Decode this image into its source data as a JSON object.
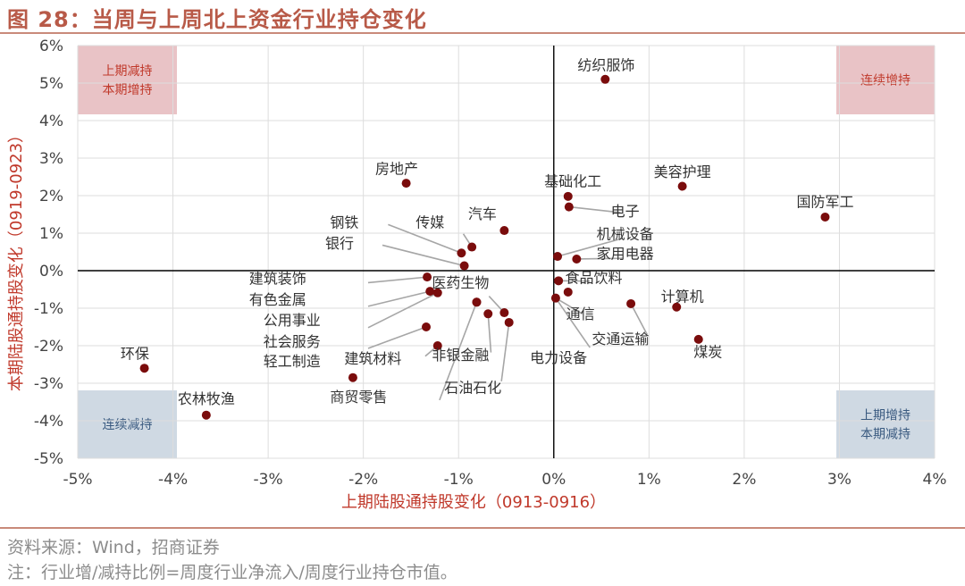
{
  "figure": {
    "title": "图 28：当周与上周北上资金行业持仓变化",
    "source": "资料来源：Wind，招商证券",
    "note": "注：行业增/减持比例=周度行业净流入/周度行业持仓市值。"
  },
  "chart_data": {
    "type": "scatter",
    "xlabel": "上期陆股通持股变化（0913-0916）",
    "ylabel": "本期陆股通持股变化（0919-0923）",
    "xlim": [
      -5,
      4
    ],
    "ylim": [
      -5,
      6
    ],
    "x_ticks": [
      -5,
      -4,
      -3,
      -2,
      -1,
      0,
      1,
      2,
      3,
      4
    ],
    "y_ticks": [
      -5,
      -4,
      -3,
      -2,
      -1,
      0,
      1,
      2,
      3,
      4,
      5,
      6
    ],
    "x_tick_labels": [
      "-5%",
      "-4%",
      "-3%",
      "-2%",
      "-1%",
      "0%",
      "1%",
      "2%",
      "3%",
      "4%"
    ],
    "y_tick_labels": [
      "-5%",
      "-4%",
      "-3%",
      "-2%",
      "-1%",
      "0%",
      "1%",
      "2%",
      "3%",
      "4%",
      "5%",
      "6%"
    ],
    "grid": true,
    "point_color": "#7a0c0c",
    "quadrants": [
      {
        "id": "top-left",
        "lines": [
          "上期减持",
          "本期增持"
        ],
        "color": "#e9c3c6",
        "text_color": "#c0392b"
      },
      {
        "id": "top-right",
        "lines": [
          "连续增持"
        ],
        "color": "#e9c3c6",
        "text_color": "#c0392b"
      },
      {
        "id": "bottom-left",
        "lines": [
          "连续减持"
        ],
        "color": "#cfd9e3",
        "text_color": "#3a5a80"
      },
      {
        "id": "bottom-right",
        "lines": [
          "上期增持",
          "本期减持"
        ],
        "color": "#cfd9e3",
        "text_color": "#3a5a80"
      }
    ],
    "points": [
      {
        "name": "纺织服饰",
        "x": 0.54,
        "y": 5.1
      },
      {
        "name": "美容护理",
        "x": 1.35,
        "y": 2.25
      },
      {
        "name": "国防军工",
        "x": 2.85,
        "y": 1.43
      },
      {
        "name": "基础化工",
        "x": 0.15,
        "y": 1.98
      },
      {
        "name": "电子",
        "x": 0.16,
        "y": 1.7
      },
      {
        "name": "机械设备",
        "x": 0.04,
        "y": 0.38
      },
      {
        "name": "家用电器",
        "x": 0.24,
        "y": 0.31
      },
      {
        "name": "食品饮料",
        "x": 0.05,
        "y": -0.27
      },
      {
        "name": "通信",
        "x": 0.15,
        "y": -0.57
      },
      {
        "name": "电力设备",
        "x": 0.02,
        "y": -0.73
      },
      {
        "name": "计算机",
        "x": 1.29,
        "y": -0.97
      },
      {
        "name": "交通运输",
        "x": 0.81,
        "y": -0.88
      },
      {
        "name": "煤炭",
        "x": 1.52,
        "y": -1.83
      },
      {
        "name": "房地产",
        "x": -1.55,
        "y": 2.33
      },
      {
        "name": "汽车",
        "x": -0.52,
        "y": 1.07
      },
      {
        "name": "传媒",
        "x": -0.86,
        "y": 0.63
      },
      {
        "name": "钢铁",
        "x": -0.97,
        "y": 0.47
      },
      {
        "name": "银行",
        "x": -0.94,
        "y": 0.13
      },
      {
        "name": "建筑装饰",
        "x": -1.33,
        "y": -0.17
      },
      {
        "name": "有色金属",
        "x": -1.3,
        "y": -0.55
      },
      {
        "name": "公用事业",
        "x": -1.22,
        "y": -0.59
      },
      {
        "name": "医药生物",
        "x": -0.81,
        "y": -0.84
      },
      {
        "name": "非银金融",
        "x": -0.69,
        "y": -1.15
      },
      {
        "name": "石油石化",
        "x": -0.52,
        "y": -1.12
      },
      {
        "name": "石油石化-2",
        "x": -0.47,
        "y": -1.38,
        "label": ""
      },
      {
        "name": "社会服务",
        "x": -1.34,
        "y": -1.5
      },
      {
        "name": "建筑材料",
        "x": -1.22,
        "y": -2.0
      },
      {
        "name": "轻工制造",
        "x": -2.11,
        "y": -2.85
      },
      {
        "name": "商贸零售",
        "x": -0.81,
        "y": -0.84,
        "label": ""
      },
      {
        "name": "环保",
        "x": -4.3,
        "y": -2.6
      },
      {
        "name": "农林牧渔",
        "x": -3.65,
        "y": -3.85
      }
    ],
    "labels": [
      {
        "text": "纺织服饰",
        "x": 0.55,
        "y": 5.35
      },
      {
        "text": "美容护理",
        "x": 1.35,
        "y": 2.5
      },
      {
        "text": "国防军工",
        "x": 2.85,
        "y": 1.7
      },
      {
        "text": "基础化工",
        "x": 0.2,
        "y": 2.25
      },
      {
        "text": "电子",
        "x": 0.75,
        "y": 1.45
      },
      {
        "text": "机械设备",
        "x": 0.75,
        "y": 0.85
      },
      {
        "text": "家用电器",
        "x": 0.75,
        "y": 0.32
      },
      {
        "text": "食品饮料",
        "x": 0.42,
        "y": -0.32
      },
      {
        "text": "通信",
        "x": 0.28,
        "y": -1.28
      },
      {
        "text": "电力设备",
        "x": 0.05,
        "y": -2.45
      },
      {
        "text": "计算机",
        "x": 1.35,
        "y": -0.82
      },
      {
        "text": "交通运输",
        "x": 0.7,
        "y": -1.95
      },
      {
        "text": "煤炭",
        "x": 1.62,
        "y": -2.3
      },
      {
        "text": "房地产",
        "x": -1.65,
        "y": 2.58
      },
      {
        "text": "汽车",
        "x": -0.75,
        "y": 1.38
      },
      {
        "text": "传媒",
        "x": -1.3,
        "y": 1.15
      },
      {
        "text": "钢铁",
        "x": -2.2,
        "y": 1.15
      },
      {
        "text": "银行",
        "x": -2.25,
        "y": 0.6
      },
      {
        "text": "建筑装饰",
        "x": -2.9,
        "y": -0.35
      },
      {
        "text": "有色金属",
        "x": -2.9,
        "y": -0.9
      },
      {
        "text": "医药生物",
        "x": -0.98,
        "y": -0.45
      },
      {
        "text": "公用事业",
        "x": -2.75,
        "y": -1.45
      },
      {
        "text": "社会服务",
        "x": -2.75,
        "y": -2.02
      },
      {
        "text": "轻工制造",
        "x": -2.75,
        "y": -2.55
      },
      {
        "text": "建筑材料",
        "x": -1.9,
        "y": -2.48
      },
      {
        "text": "非银金融",
        "x": -0.98,
        "y": -2.38
      },
      {
        "text": "石油石化",
        "x": -0.85,
        "y": -3.25
      },
      {
        "text": "商贸零售",
        "x": -2.05,
        "y": -3.5
      },
      {
        "text": "环保",
        "x": -4.4,
        "y": -2.35
      },
      {
        "text": "农林牧渔",
        "x": -3.65,
        "y": -3.55
      }
    ]
  }
}
